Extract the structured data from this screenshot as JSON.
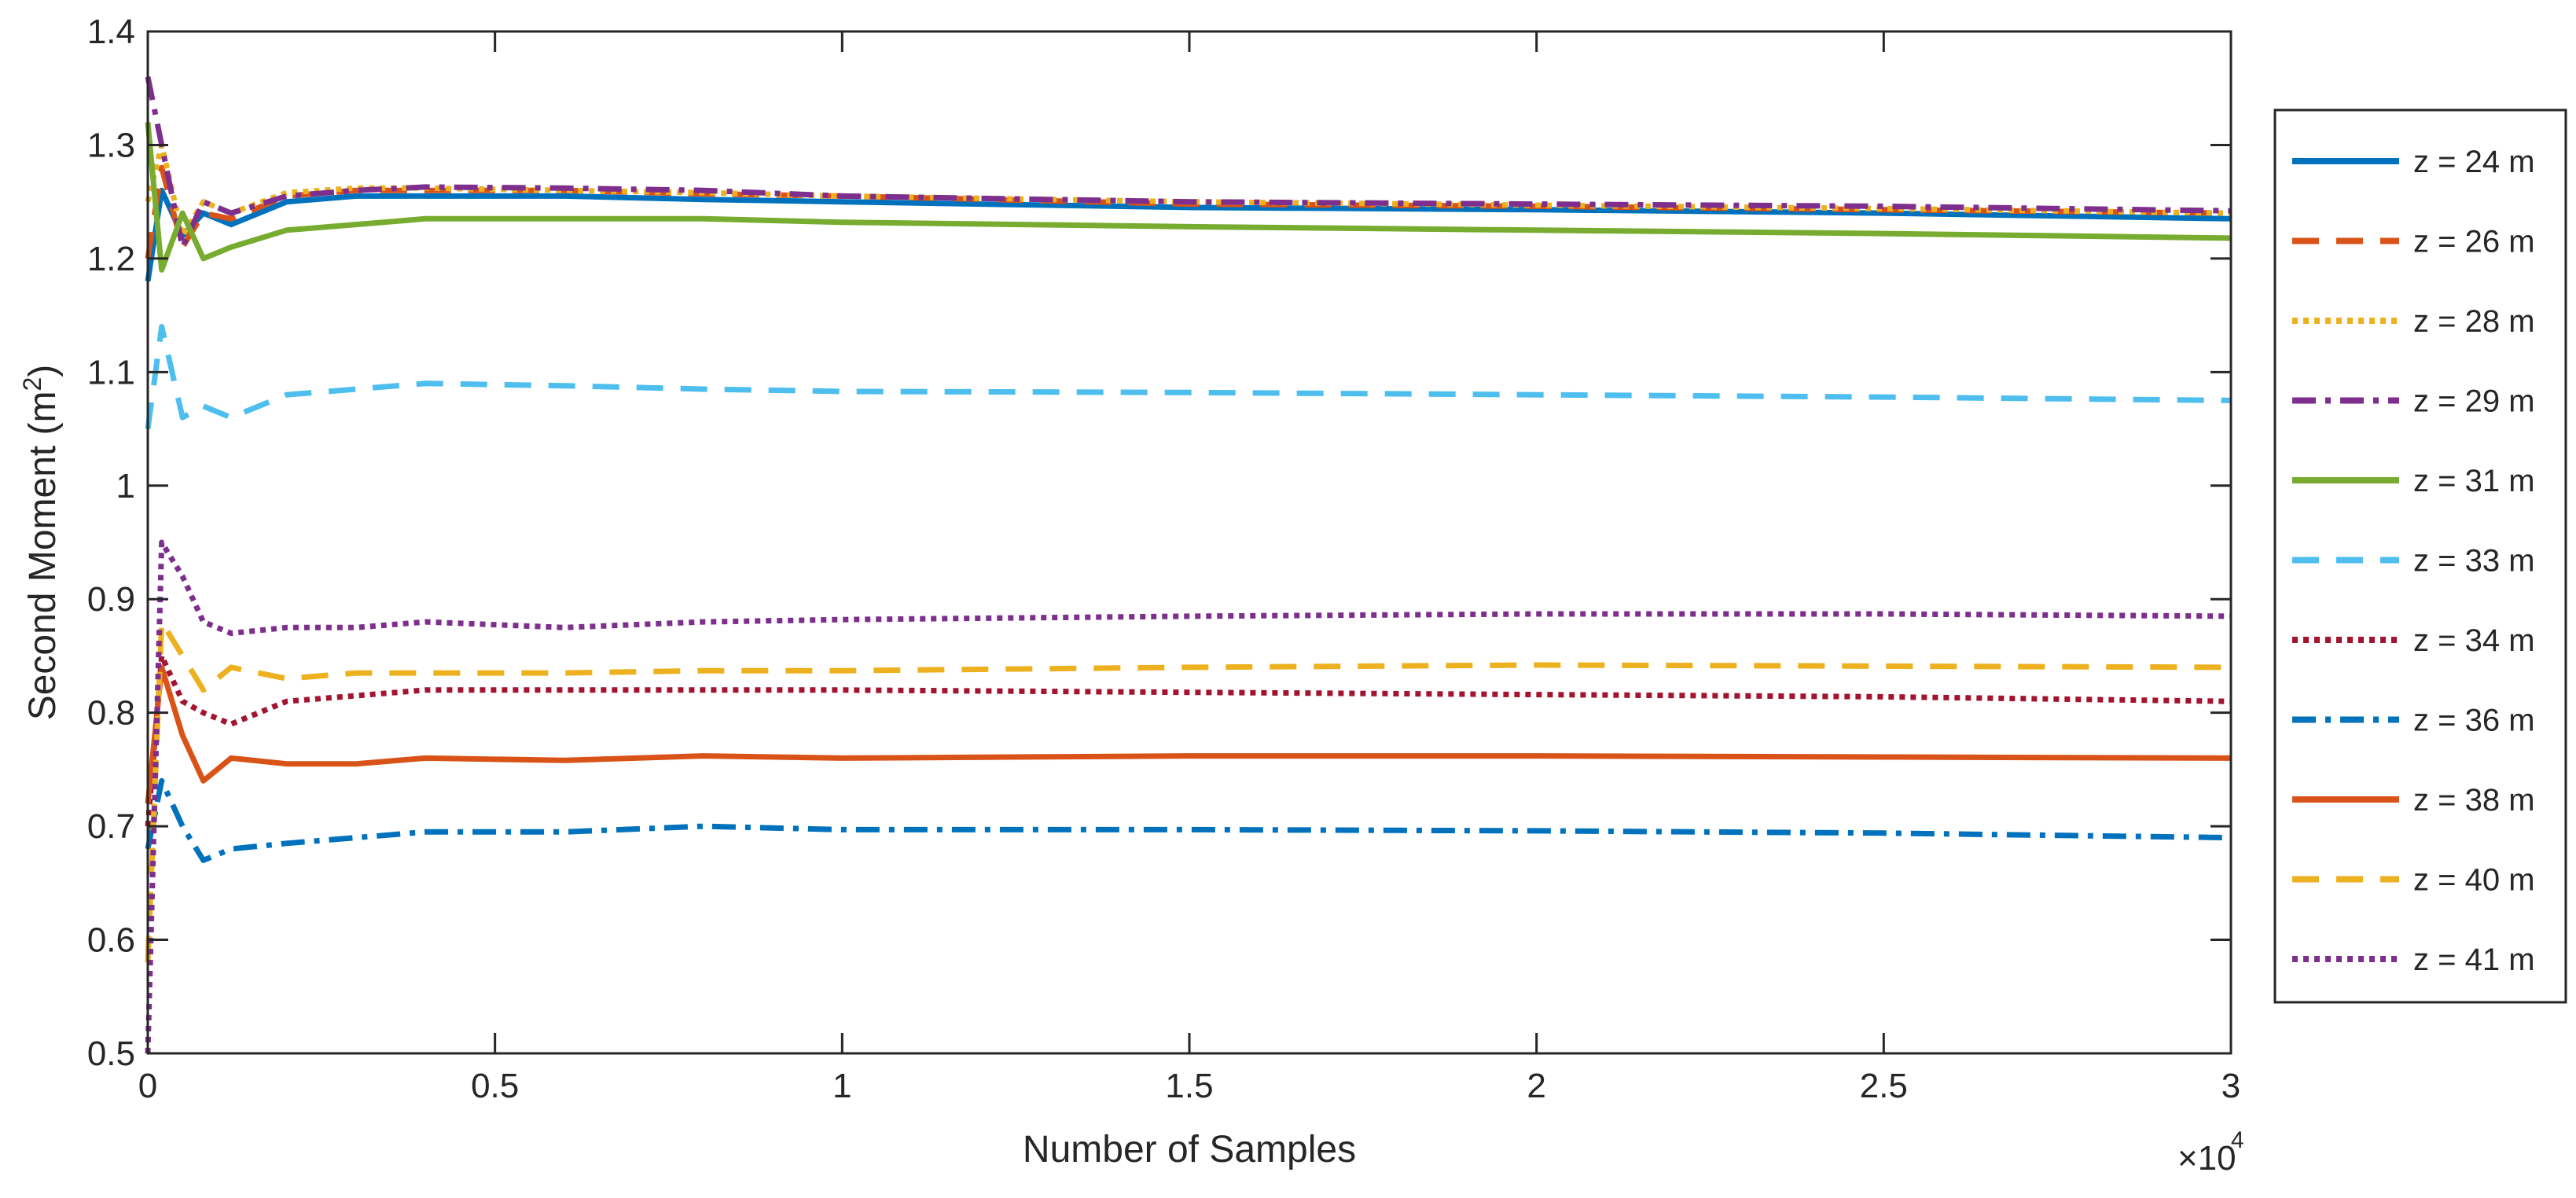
{
  "chart_data": {
    "type": "line",
    "title": "",
    "xlabel": "Number of Samples",
    "ylabel": "Second Moment (m",
    "ylabel_sup": "2",
    "ylabel_close": ")",
    "xlim": [
      0,
      3
    ],
    "ylim": [
      0.5,
      1.4
    ],
    "x_multiplier_base": "×10",
    "x_multiplier_exp": "4",
    "xticks": [
      0,
      0.5,
      1,
      1.5,
      2,
      2.5,
      3
    ],
    "xtick_labels": [
      "0",
      "0.5",
      "1",
      "1.5",
      "2",
      "2.5",
      "3"
    ],
    "yticks": [
      0.5,
      0.6,
      0.7,
      0.8,
      0.9,
      1.0,
      1.1,
      1.2,
      1.3,
      1.4
    ],
    "ytick_labels": [
      "0.5",
      "0.6",
      "0.7",
      "0.8",
      "0.9",
      "1",
      "1.1",
      "1.2",
      "1.3",
      "1.4"
    ],
    "grid": false,
    "legend_position": "right-outside",
    "x": [
      0,
      0.02,
      0.05,
      0.08,
      0.12,
      0.2,
      0.3,
      0.4,
      0.6,
      0.8,
      1.0,
      1.5,
      2.0,
      2.5,
      3.0
    ],
    "series": [
      {
        "name": "z = 24 m",
        "color": "#0072BD",
        "dash": "solid",
        "values": [
          1.18,
          1.26,
          1.22,
          1.24,
          1.23,
          1.25,
          1.255,
          1.255,
          1.255,
          1.252,
          1.25,
          1.245,
          1.243,
          1.24,
          1.235
        ]
      },
      {
        "name": "z = 26 m",
        "color": "#D95319",
        "dash": "dashed",
        "values": [
          1.2,
          1.28,
          1.21,
          1.24,
          1.235,
          1.255,
          1.26,
          1.26,
          1.26,
          1.257,
          1.255,
          1.248,
          1.246,
          1.243,
          1.24
        ]
      },
      {
        "name": "z = 28 m",
        "color": "#EDB120",
        "dash": "dotted",
        "values": [
          1.25,
          1.3,
          1.22,
          1.25,
          1.24,
          1.258,
          1.262,
          1.262,
          1.26,
          1.258,
          1.255,
          1.25,
          1.247,
          1.244,
          1.24
        ]
      },
      {
        "name": "z = 29 m",
        "color": "#7E2F8E",
        "dash": "dashdot",
        "values": [
          1.36,
          1.3,
          1.21,
          1.25,
          1.24,
          1.255,
          1.26,
          1.263,
          1.262,
          1.26,
          1.255,
          1.25,
          1.248,
          1.246,
          1.242
        ]
      },
      {
        "name": "z = 31 m",
        "color": "#77AC30",
        "dash": "solid",
        "values": [
          1.32,
          1.19,
          1.24,
          1.2,
          1.21,
          1.225,
          1.23,
          1.235,
          1.235,
          1.235,
          1.232,
          1.228,
          1.225,
          1.222,
          1.218
        ]
      },
      {
        "name": "z = 33 m",
        "color": "#4DBEEE",
        "dash": "dashed",
        "values": [
          1.05,
          1.14,
          1.06,
          1.07,
          1.06,
          1.08,
          1.085,
          1.09,
          1.088,
          1.085,
          1.083,
          1.082,
          1.08,
          1.078,
          1.075
        ]
      },
      {
        "name": "z = 34 m",
        "color": "#A2142F",
        "dash": "dotted",
        "values": [
          0.7,
          0.85,
          0.81,
          0.8,
          0.79,
          0.81,
          0.815,
          0.82,
          0.82,
          0.82,
          0.82,
          0.818,
          0.816,
          0.814,
          0.81
        ]
      },
      {
        "name": "z = 36 m",
        "color": "#0072BD",
        "dash": "dashdot",
        "values": [
          0.68,
          0.74,
          0.7,
          0.67,
          0.68,
          0.685,
          0.69,
          0.695,
          0.695,
          0.7,
          0.697,
          0.697,
          0.696,
          0.694,
          0.69
        ]
      },
      {
        "name": "z = 38 m",
        "color": "#D95319",
        "dash": "solid",
        "values": [
          0.72,
          0.84,
          0.78,
          0.74,
          0.76,
          0.755,
          0.755,
          0.76,
          0.758,
          0.762,
          0.76,
          0.762,
          0.762,
          0.761,
          0.76
        ]
      },
      {
        "name": "z = 40 m",
        "color": "#EDB120",
        "dash": "dashed",
        "values": [
          0.58,
          0.88,
          0.85,
          0.82,
          0.84,
          0.83,
          0.835,
          0.835,
          0.835,
          0.837,
          0.837,
          0.84,
          0.842,
          0.841,
          0.84
        ]
      },
      {
        "name": "z = 41 m",
        "color": "#7E2F8E",
        "dash": "dotted",
        "values": [
          0.5,
          0.95,
          0.92,
          0.88,
          0.87,
          0.875,
          0.875,
          0.88,
          0.875,
          0.88,
          0.882,
          0.885,
          0.887,
          0.887,
          0.885
        ]
      }
    ]
  }
}
